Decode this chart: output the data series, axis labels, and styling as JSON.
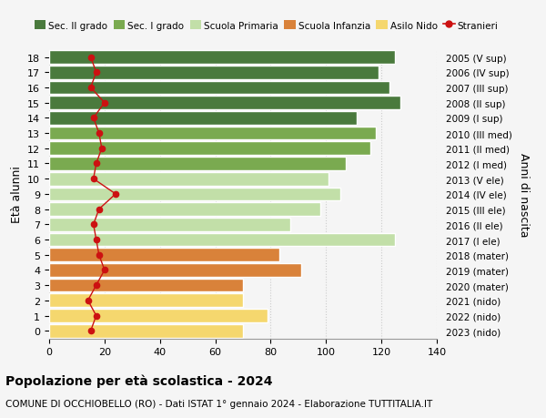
{
  "ages": [
    18,
    17,
    16,
    15,
    14,
    13,
    12,
    11,
    10,
    9,
    8,
    7,
    6,
    5,
    4,
    3,
    2,
    1,
    0
  ],
  "right_labels": [
    "2005 (V sup)",
    "2006 (IV sup)",
    "2007 (III sup)",
    "2008 (II sup)",
    "2009 (I sup)",
    "2010 (III med)",
    "2011 (II med)",
    "2012 (I med)",
    "2013 (V ele)",
    "2014 (IV ele)",
    "2015 (III ele)",
    "2016 (II ele)",
    "2017 (I ele)",
    "2018 (mater)",
    "2019 (mater)",
    "2020 (mater)",
    "2021 (nido)",
    "2022 (nido)",
    "2023 (nido)"
  ],
  "bar_values": [
    125,
    119,
    123,
    127,
    111,
    118,
    116,
    107,
    101,
    105,
    98,
    87,
    125,
    83,
    91,
    70,
    70,
    79,
    70
  ],
  "bar_colors": [
    "#4a7a3d",
    "#4a7a3d",
    "#4a7a3d",
    "#4a7a3d",
    "#4a7a3d",
    "#7aaa50",
    "#7aaa50",
    "#7aaa50",
    "#c2dfa8",
    "#c2dfa8",
    "#c2dfa8",
    "#c2dfa8",
    "#c2dfa8",
    "#d9823a",
    "#d9823a",
    "#d9823a",
    "#f5d76e",
    "#f5d76e",
    "#f5d76e"
  ],
  "stranieri_values": [
    15,
    17,
    15,
    20,
    16,
    18,
    19,
    17,
    16,
    24,
    18,
    16,
    17,
    18,
    20,
    17,
    14,
    17,
    15
  ],
  "legend_labels": [
    "Sec. II grado",
    "Sec. I grado",
    "Scuola Primaria",
    "Scuola Infanzia",
    "Asilo Nido",
    "Stranieri"
  ],
  "legend_colors": [
    "#4a7a3d",
    "#7aaa50",
    "#c2dfa8",
    "#d9823a",
    "#f5d76e",
    "#cc1111"
  ],
  "xlabel_left": "Età alunni",
  "xlabel_right": "Anni di nascita",
  "title_bold": "Popolazione per età scolastica - 2024",
  "subtitle": "COMUNE DI OCCHIOBELLO (RO) - Dati ISTAT 1° gennaio 2024 - Elaborazione TUTTITALIA.IT",
  "xlim": [
    0,
    140
  ],
  "xticks": [
    0,
    20,
    40,
    60,
    80,
    100,
    120,
    140
  ],
  "bg_color": "#f5f5f5",
  "grid_color": "#cccccc"
}
